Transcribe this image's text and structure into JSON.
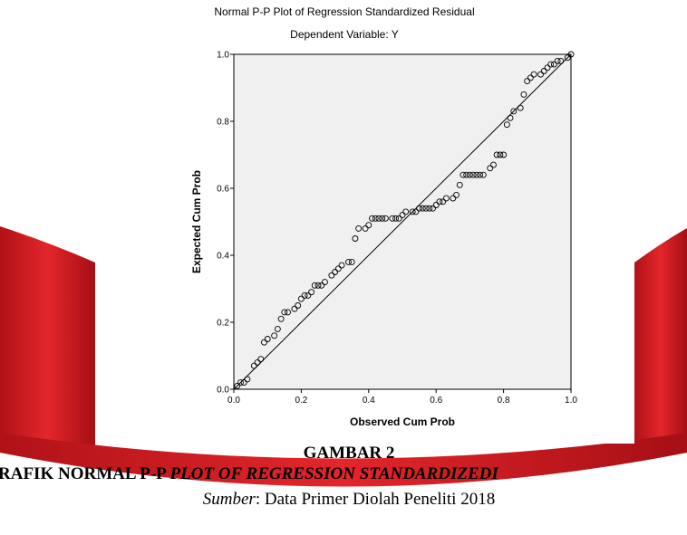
{
  "chart_data": {
    "type": "scatter",
    "title": "Normal P-P Plot of Regression Standardized Residual",
    "subtitle": "Dependent Variable: Y",
    "xlabel": "Observed Cum Prob",
    "ylabel": "Expected Cum Prob",
    "xlim": [
      0,
      1
    ],
    "ylim": [
      0,
      1
    ],
    "xticks": [
      {
        "value": 0,
        "label": "0.0"
      },
      0.2,
      0.4,
      0.6,
      0.8,
      {
        "value": 1,
        "label": "1.0"
      }
    ],
    "yticks": [
      {
        "value": 0,
        "label": "0.0"
      },
      0.2,
      0.4,
      0.6,
      0.8,
      {
        "value": 1,
        "label": "1.0"
      }
    ],
    "color": "#000000",
    "x": [
      0.01,
      0.02,
      0.03,
      0.04,
      0.06,
      0.07,
      0.08,
      0.09,
      0.1,
      0.12,
      0.13,
      0.14,
      0.15,
      0.16,
      0.18,
      0.19,
      0.2,
      0.21,
      0.22,
      0.23,
      0.24,
      0.25,
      0.26,
      0.27,
      0.29,
      0.3,
      0.31,
      0.32,
      0.34,
      0.35,
      0.36,
      0.37,
      0.39,
      0.4,
      0.41,
      0.42,
      0.43,
      0.44,
      0.45,
      0.47,
      0.48,
      0.49,
      0.5,
      0.51,
      0.53,
      0.54,
      0.55,
      0.56,
      0.57,
      0.58,
      0.59,
      0.6,
      0.61,
      0.62,
      0.63,
      0.65,
      0.66,
      0.67,
      0.68,
      0.69,
      0.7,
      0.71,
      0.72,
      0.73,
      0.74,
      0.76,
      0.77,
      0.78,
      0.79,
      0.8,
      0.81,
      0.82,
      0.83,
      0.85,
      0.86,
      0.87,
      0.88,
      0.89,
      0.91,
      0.92,
      0.93,
      0.94,
      0.95,
      0.96,
      0.97,
      0.99,
      1.0
    ],
    "values": [
      0.01,
      0.02,
      0.02,
      0.03,
      0.07,
      0.08,
      0.09,
      0.14,
      0.15,
      0.16,
      0.18,
      0.21,
      0.23,
      0.23,
      0.24,
      0.25,
      0.27,
      0.28,
      0.28,
      0.29,
      0.31,
      0.31,
      0.31,
      0.32,
      0.34,
      0.35,
      0.36,
      0.37,
      0.38,
      0.38,
      0.45,
      0.48,
      0.48,
      0.49,
      0.51,
      0.51,
      0.51,
      0.51,
      0.51,
      0.51,
      0.51,
      0.51,
      0.52,
      0.53,
      0.53,
      0.53,
      0.54,
      0.54,
      0.54,
      0.54,
      0.54,
      0.55,
      0.56,
      0.56,
      0.57,
      0.57,
      0.58,
      0.61,
      0.64,
      0.64,
      0.64,
      0.64,
      0.64,
      0.64,
      0.64,
      0.66,
      0.67,
      0.7,
      0.7,
      0.7,
      0.79,
      0.81,
      0.83,
      0.84,
      0.88,
      0.92,
      0.93,
      0.94,
      0.94,
      0.95,
      0.96,
      0.97,
      0.97,
      0.98,
      0.98,
      0.99,
      1.0
    ]
  },
  "caption": {
    "label": "GAMBAR 2",
    "heading_plain": "RAFIK NORMAL P-P ",
    "heading_italic": "PLOT OF REGRESSION STANDARDIZEDI",
    "source_label": "Sumber",
    "source_text": ": Data Primer Diolah Peneliti 2018"
  }
}
